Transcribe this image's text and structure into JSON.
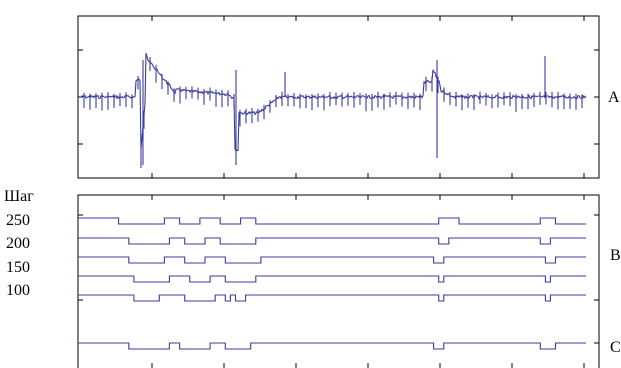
{
  "chart_data": [
    {
      "type": "line",
      "panel_label": "A",
      "description_points": {
        "x": [
          0,
          16,
          18,
          19,
          20,
          22,
          30,
          40,
          41,
          43,
          45,
          55,
          70,
          71,
          72,
          78,
          80,
          82,
          98
        ],
        "y": [
          0,
          0,
          0.6,
          -1.0,
          1.0,
          0.5,
          0.05,
          0,
          -0.8,
          -0.2,
          -0.2,
          0,
          0,
          0.4,
          -0.7,
          0.3,
          -0.1,
          0,
          0
        ]
      },
      "ylim": [
        -1.2,
        1.2
      ]
    },
    {
      "type": "line",
      "ylabel": "Шаг",
      "y_ticks": [
        "250",
        "200",
        "150",
        "100"
      ],
      "panel_labels": [
        "B",
        "C"
      ],
      "series": [
        {
          "x": [
            0,
            8,
            8,
            17,
            17,
            20,
            20,
            24,
            24,
            28,
            28,
            32,
            32,
            35,
            35,
            71,
            71,
            75,
            75,
            91,
            91,
            94,
            94,
            100
          ],
          "high": 1,
          "low": 0,
          "states": [
            1,
            0,
            1,
            0,
            1,
            0,
            1,
            0,
            1,
            0,
            1,
            0,
            1
          ]
        },
        {
          "x": [
            0,
            10,
            10,
            18,
            18,
            21,
            21,
            25,
            25,
            28,
            28,
            35,
            35,
            71,
            71,
            73,
            73,
            91,
            91,
            93,
            93,
            100
          ]
        },
        {
          "x": [
            0,
            10,
            10,
            17,
            17,
            21,
            21,
            25,
            25,
            29,
            29,
            36,
            36,
            70,
            70,
            72,
            72,
            92,
            92,
            94,
            94,
            100
          ]
        },
        {
          "x": [
            0,
            11,
            11,
            18,
            18,
            22,
            22,
            26,
            26,
            29,
            29,
            35,
            35,
            71,
            71,
            72,
            72,
            92,
            92,
            93,
            93,
            100
          ]
        },
        {
          "x": [
            0,
            11,
            11,
            16,
            16,
            21,
            21,
            27,
            27,
            29,
            29,
            30,
            30,
            31,
            31,
            33,
            33,
            71,
            71,
            72,
            72,
            92,
            92,
            93,
            93,
            100
          ]
        },
        {
          "x": [
            0,
            10,
            10,
            18,
            18,
            20,
            20,
            26,
            26,
            29,
            29,
            34,
            34,
            70,
            70,
            72,
            72,
            91,
            91,
            94,
            94,
            100
          ]
        }
      ]
    }
  ]
}
